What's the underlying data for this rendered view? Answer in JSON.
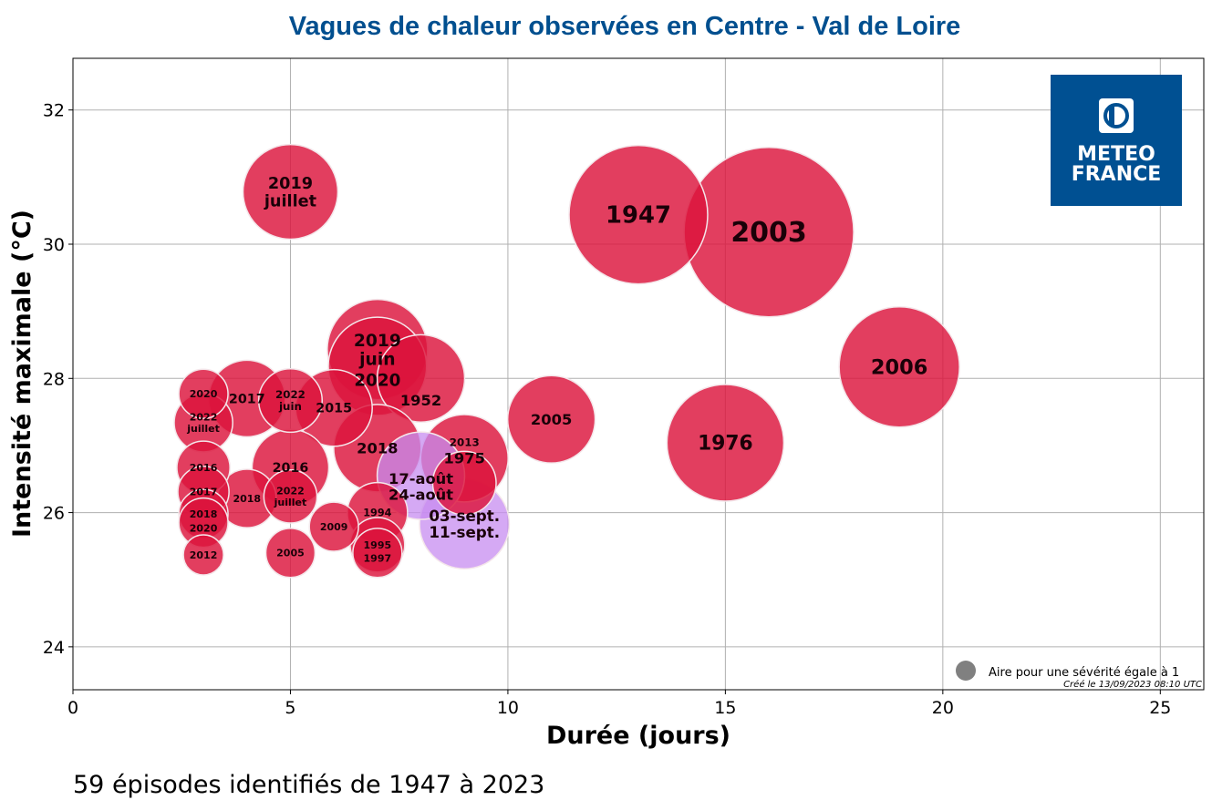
{
  "chart_data": {
    "type": "scatter",
    "title": "Vagues de chaleur observées en Centre - Val de Loire",
    "xlabel": "Durée (jours)",
    "ylabel": "Intensité maximale (°C)",
    "xlim": [
      0,
      26
    ],
    "ylim": [
      23.36,
      32.77
    ],
    "xticks": [
      0,
      5,
      10,
      15,
      20,
      25
    ],
    "yticks": [
      24,
      26,
      28,
      30,
      32
    ],
    "grid": true,
    "size_encoding": "bubble area proportional to severity",
    "colors": {
      "past": "#dc143c",
      "current": "#c78cf0",
      "legend": "#808080"
    },
    "points": [
      {
        "label": "2003",
        "x": 16,
        "y": 30.18,
        "severity": 71.5,
        "group": "past"
      },
      {
        "label": "1947",
        "x": 13,
        "y": 30.44,
        "severity": 47.7,
        "group": "past"
      },
      {
        "label": "2006",
        "x": 19,
        "y": 28.17,
        "severity": 36,
        "group": "past"
      },
      {
        "label": "1976",
        "x": 15,
        "y": 27.04,
        "severity": 33.9,
        "group": "past"
      },
      {
        "label": "2019\njuin",
        "x": 7,
        "y": 28.43,
        "severity": 25,
        "group": "past"
      },
      {
        "label": "2020",
        "x": 7,
        "y": 28.18,
        "severity": 24,
        "group": "past"
      },
      {
        "label": "2019\njuillet",
        "x": 5,
        "y": 30.78,
        "severity": 22.3,
        "group": "past"
      },
      {
        "label": "2005",
        "x": 11,
        "y": 27.39,
        "severity": 19,
        "group": "past"
      },
      {
        "label": "1952",
        "x": 8,
        "y": 28.0,
        "severity": 19,
        "group": "past"
      },
      {
        "label": "2018",
        "x": 7,
        "y": 26.96,
        "severity": 19,
        "group": "past"
      },
      {
        "label": "1975",
        "x": 9,
        "y": 26.81,
        "severity": 19,
        "group": "past"
      },
      {
        "label": "2017",
        "x": 4,
        "y": 27.7,
        "severity": 14.6,
        "group": "past"
      },
      {
        "label": "2015",
        "x": 6,
        "y": 27.56,
        "severity": 14.6,
        "group": "past"
      },
      {
        "label": "2016",
        "x": 5,
        "y": 26.67,
        "severity": 14.6,
        "group": "past"
      },
      {
        "label": "2013",
        "x": 9,
        "y": 26.44,
        "severity": 10,
        "group": "past"
      },
      {
        "label": "2022\njuin",
        "x": 5,
        "y": 27.67,
        "severity": 10,
        "group": "past"
      },
      {
        "label": "1994",
        "x": 7,
        "y": 26.0,
        "severity": 9,
        "group": "past"
      },
      {
        "label": "2022\njuillet",
        "x": 3,
        "y": 27.34,
        "severity": 8.5,
        "group": "past"
      },
      {
        "label": "2018",
        "x": 4,
        "y": 26.21,
        "severity": 8.5,
        "group": "past"
      },
      {
        "label": "1995",
        "x": 7,
        "y": 25.52,
        "severity": 7.4,
        "group": "past"
      },
      {
        "label": "2016",
        "x": 3,
        "y": 26.67,
        "severity": 7,
        "group": "past"
      },
      {
        "label": "2022\njuillet",
        "x": 5,
        "y": 26.24,
        "severity": 7,
        "group": "past"
      },
      {
        "label": "2017",
        "x": 3,
        "y": 26.31,
        "severity": 6.5,
        "group": "past"
      },
      {
        "label": "2018",
        "x": 3,
        "y": 25.98,
        "severity": 6,
        "group": "past"
      },
      {
        "label": "2020",
        "x": 3,
        "y": 27.77,
        "severity": 6,
        "group": "past"
      },
      {
        "label": "2020",
        "x": 3,
        "y": 25.85,
        "severity": 6,
        "group": "past"
      },
      {
        "label": "1997",
        "x": 7,
        "y": 25.4,
        "severity": 6,
        "group": "past"
      },
      {
        "label": "2009",
        "x": 6,
        "y": 25.79,
        "severity": 6,
        "group": "past"
      },
      {
        "label": "2005",
        "x": 5,
        "y": 25.4,
        "severity": 6,
        "group": "past"
      },
      {
        "label": "2012",
        "x": 3,
        "y": 25.37,
        "severity": 4,
        "group": "past"
      },
      {
        "label": "17-août\n24-août",
        "x": 8,
        "y": 26.55,
        "severity": 19,
        "group": "current"
      },
      {
        "label": "03-sept.\n11-sept.",
        "x": 9,
        "y": 25.83,
        "severity": 20,
        "group": "current"
      }
    ],
    "legend": {
      "label": "Aire pour une sévérité égale à 1",
      "placement": "bottom-right"
    },
    "created": "Créé le 13/09/2023 08:10 UTC",
    "footer": "59 épisodes identifiés de 1947 à 2023"
  },
  "logo": {
    "line1": "METEO",
    "line2": "FRANCE",
    "color": "#005092"
  }
}
